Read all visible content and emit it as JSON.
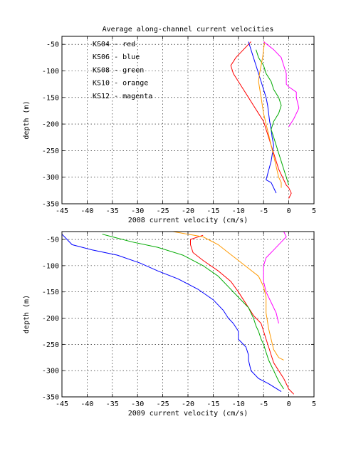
{
  "figure_title": "Average along-channel current velocities",
  "legend": [
    {
      "label": "KS04  -  red"
    },
    {
      "label": "KS06  -  blue"
    },
    {
      "label": "KS08  -  green"
    },
    {
      "label": "KS10  -  orange"
    },
    {
      "label": "KS12  -  magenta"
    }
  ],
  "chart_data": [
    {
      "type": "line",
      "title": "Average along-channel current velocities",
      "xlabel": "2008 current velocity (cm/s)",
      "ylabel": "depth (m)",
      "xlim": [
        -45,
        5
      ],
      "ylim": [
        -350,
        -35
      ],
      "xticks": [
        -45,
        -40,
        -35,
        -30,
        -25,
        -20,
        -15,
        -10,
        -5,
        0,
        5
      ],
      "yticks": [
        -50,
        -100,
        -150,
        -200,
        -250,
        -300,
        -350
      ],
      "grid": true,
      "legend_position": "top-left",
      "series": [
        {
          "name": "KS04",
          "color": "#ff0000",
          "x": [
            -7.5,
            -9,
            -10.5,
            -11.5,
            -11,
            -10,
            -9,
            -8,
            -7,
            -6,
            -5,
            -4.5,
            -4,
            -3.5,
            -3,
            -2.5,
            -2,
            -1.5,
            -1,
            -0.5,
            0,
            0.5,
            0
          ],
          "y": [
            -45,
            -60,
            -75,
            -90,
            -105,
            -120,
            -135,
            -150,
            -165,
            -180,
            -195,
            -210,
            -225,
            -240,
            -255,
            -270,
            -285,
            -295,
            -305,
            -315,
            -320,
            -330,
            -340
          ]
        },
        {
          "name": "KS06",
          "color": "#0000ff",
          "x": [
            -8,
            -7.5,
            -7,
            -6.5,
            -6,
            -5.5,
            -5,
            -4.5,
            -4.2,
            -4,
            -3.8,
            -3.5,
            -3.3,
            -3,
            -3.5,
            -4.5,
            -3.5,
            -3,
            -2.5
          ],
          "y": [
            -45,
            -60,
            -75,
            -90,
            -105,
            -120,
            -135,
            -150,
            -165,
            -180,
            -195,
            -210,
            -225,
            -240,
            -270,
            -305,
            -310,
            -320,
            -330
          ]
        },
        {
          "name": "KS08",
          "color": "#00aa00",
          "x": [
            -6.5,
            -6,
            -5,
            -4.5,
            -3.5,
            -3,
            -2,
            -1.5,
            -2,
            -3,
            -3.5,
            -3,
            -2.5,
            -2,
            -1.5,
            -1,
            -0.5,
            0
          ],
          "y": [
            -60,
            -75,
            -90,
            -105,
            -120,
            -135,
            -150,
            -165,
            -180,
            -195,
            -210,
            -225,
            -240,
            -255,
            -270,
            -285,
            -300,
            -315
          ]
        },
        {
          "name": "KS10",
          "color": "#ff9900",
          "x": [
            -4.8,
            -5,
            -5.2,
            -5.5,
            -5.8,
            -6,
            -5.5,
            -5,
            -4.5,
            -4,
            -3.5,
            -3,
            -2.5,
            -2,
            -1.5,
            -1.5
          ],
          "y": [
            -45,
            -60,
            -75,
            -90,
            -105,
            -120,
            -150,
            -180,
            -200,
            -220,
            -240,
            -260,
            -280,
            -300,
            -310,
            -320
          ]
        },
        {
          "name": "KS12",
          "color": "#ff00ff",
          "x": [
            -5,
            -3,
            -1.5,
            -1,
            -0.5,
            -0.5,
            0,
            1.5,
            1.5,
            2,
            1,
            0
          ],
          "y": [
            -45,
            -60,
            -75,
            -90,
            -105,
            -125,
            -130,
            -140,
            -150,
            -170,
            -190,
            -205
          ]
        }
      ]
    },
    {
      "type": "line",
      "xlabel": "2009 current velocity (cm/s)",
      "ylabel": "depth (m)",
      "xlim": [
        -45,
        5
      ],
      "ylim": [
        -350,
        -35
      ],
      "xticks": [
        -45,
        -40,
        -35,
        -30,
        -25,
        -20,
        -15,
        -10,
        -5,
        0,
        5
      ],
      "yticks": [
        -50,
        -100,
        -150,
        -200,
        -250,
        -300,
        -350
      ],
      "grid": true,
      "series": [
        {
          "name": "KS04",
          "color": "#ff0000",
          "x": [
            -17,
            -19.5,
            -19.5,
            -19,
            -17,
            -14,
            -11.5,
            -10,
            -9,
            -8,
            -7,
            -5.5,
            -5,
            -4.5,
            -4,
            -3.5,
            -3,
            -2,
            -1,
            -0.5,
            0,
            0.5,
            1
          ],
          "y": [
            -42,
            -50,
            -60,
            -75,
            -90,
            -110,
            -130,
            -150,
            -165,
            -180,
            -195,
            -210,
            -225,
            -240,
            -255,
            -270,
            -285,
            -300,
            -315,
            -325,
            -335,
            -340,
            -345
          ]
        },
        {
          "name": "KS06",
          "color": "#0000ff",
          "x": [
            -45,
            -44,
            -43,
            -39,
            -34,
            -29.5,
            -26,
            -22,
            -18,
            -15,
            -13,
            -12,
            -11,
            -10,
            -10,
            -8.5,
            -8,
            -8,
            -7.5,
            -6,
            -4,
            -1.5
          ],
          "y": [
            -40,
            -50,
            -60,
            -70,
            -80,
            -95,
            -110,
            -125,
            -145,
            -165,
            -185,
            -200,
            -210,
            -225,
            -240,
            -255,
            -270,
            -280,
            -300,
            -315,
            -325,
            -340
          ]
        },
        {
          "name": "KS08",
          "color": "#00aa00",
          "x": [
            -37,
            -35,
            -31,
            -26,
            -21,
            -17,
            -14,
            -12,
            -10,
            -8,
            -7,
            -6.5,
            -6,
            -5.5,
            -5,
            -4.5,
            -4,
            -3,
            -2,
            -1
          ],
          "y": [
            -40,
            -45,
            -55,
            -65,
            -80,
            -100,
            -120,
            -140,
            -160,
            -180,
            -200,
            -215,
            -225,
            -240,
            -250,
            -265,
            -280,
            -300,
            -320,
            -335
          ]
        },
        {
          "name": "KS10",
          "color": "#ff9900",
          "x": [
            -23,
            -17,
            -14,
            -12,
            -10,
            -8,
            -6,
            -5,
            -4.5,
            -4.5,
            -4,
            -3.5,
            -3,
            -2,
            -1
          ],
          "y": [
            -35,
            -45,
            -60,
            -75,
            -90,
            -105,
            -120,
            -140,
            -160,
            -190,
            -220,
            -240,
            -260,
            -275,
            -280
          ]
        },
        {
          "name": "KS12",
          "color": "#ff00ff",
          "x": [
            -1,
            -0.5,
            -1.5,
            -3,
            -4.5,
            -5,
            -5,
            -4.5,
            -3.5,
            -2.5,
            -2
          ],
          "y": [
            -35,
            -45,
            -55,
            -70,
            -85,
            -100,
            -130,
            -150,
            -170,
            -190,
            -210
          ]
        }
      ]
    }
  ]
}
